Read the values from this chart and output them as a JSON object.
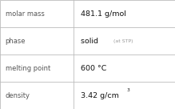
{
  "rows": [
    {
      "label": "molar mass",
      "value": "481.1 g/mol",
      "type": "plain"
    },
    {
      "label": "phase",
      "value": "solid",
      "suffix": "(at STP)",
      "type": "suffix"
    },
    {
      "label": "melting point",
      "value": "600 °C",
      "type": "plain"
    },
    {
      "label": "density",
      "value": "3.42 g/cm",
      "superscript": "3",
      "type": "super"
    }
  ],
  "col_split": 0.42,
  "background": "#ffffff",
  "border_color": "#bbbbbb",
  "label_color": "#555555",
  "value_color": "#111111",
  "suffix_color": "#999999",
  "label_fontsize": 6.0,
  "value_fontsize": 6.8,
  "suffix_fontsize": 4.5,
  "super_fontsize": 4.2
}
